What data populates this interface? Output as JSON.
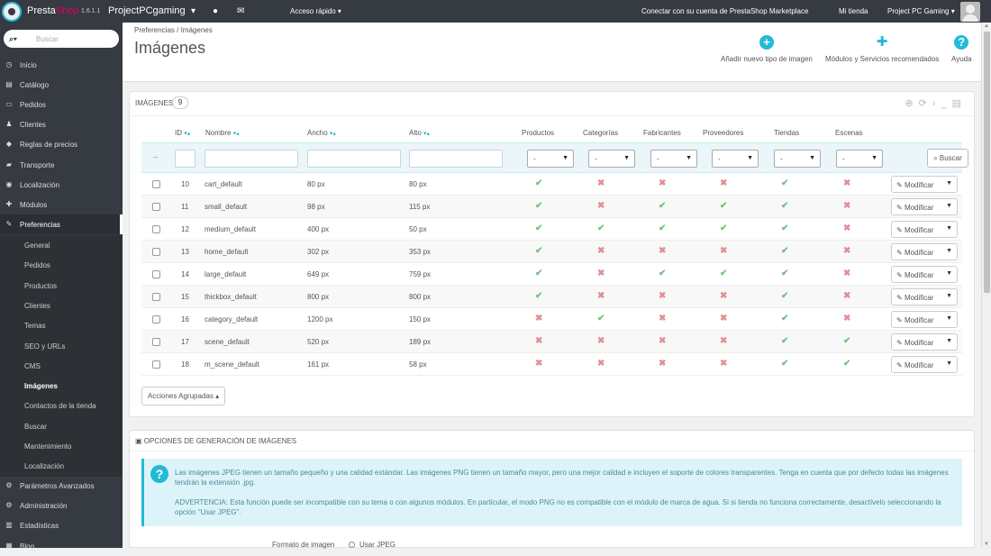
{
  "topbar": {
    "brand_a": "Presta",
    "brand_b": "Shop",
    "version": "1.6.1.1",
    "shop_name": "ProjectPCgaming",
    "quick_access": "Acceso rápido ▾",
    "connect": "Conectar con su cuenta de PrestaShop Marketplace",
    "my_store": "Mi tienda",
    "employee": "Project PC Gaming ▾"
  },
  "sidebar": {
    "search_placeholder": "Buscar",
    "items": [
      {
        "label": "Inicio",
        "icon": "dashboard-icon",
        "glyph": "◷"
      },
      {
        "label": "Catálogo",
        "icon": "book-icon",
        "glyph": "▤"
      },
      {
        "label": "Pedidos",
        "icon": "credit-card-icon",
        "glyph": "▭"
      },
      {
        "label": "Clientes",
        "icon": "users-icon",
        "glyph": "♟"
      },
      {
        "label": "Reglas de precios",
        "icon": "tag-icon",
        "glyph": "◆"
      },
      {
        "label": "Transporte",
        "icon": "truck-icon",
        "glyph": "▰"
      },
      {
        "label": "Localización",
        "icon": "globe-icon",
        "glyph": "◉"
      },
      {
        "label": "Módulos",
        "icon": "puzzle-icon",
        "glyph": "✚"
      },
      {
        "label": "Preferencias",
        "icon": "wrench-icon",
        "glyph": "✎"
      },
      {
        "label": "Parámetros Avanzados",
        "icon": "cogs-icon",
        "glyph": "⚙"
      },
      {
        "label": "Administración",
        "icon": "cog-icon",
        "glyph": "⚙"
      },
      {
        "label": "Estadísticas",
        "icon": "bar-chart-icon",
        "glyph": "▥"
      },
      {
        "label": "Blog",
        "icon": "blog-icon",
        "glyph": "▦"
      }
    ],
    "subitems": [
      "General",
      "Pedidos",
      "Productos",
      "Clientes",
      "Temas",
      "SEO y URLs",
      "CMS",
      "Imágenes",
      "Contactos de la tienda",
      "Buscar",
      "Mantenimiento",
      "Localización"
    ]
  },
  "header": {
    "breadcrumb": "Preferencias  /  Imágenes",
    "title": "Imágenes",
    "tools": {
      "add": "Añadir nuevo tipo de imagen",
      "modules": "Módulos y Servicios recomendados",
      "help": "Ayuda"
    }
  },
  "list": {
    "heading": "Imágenes",
    "count": "9",
    "columns": {
      "id": "ID",
      "name": "Nombre",
      "width": "Ancho",
      "height": "Alto",
      "products": "Productos",
      "categories": "Categorías",
      "manufacturers": "Fabricantes",
      "suppliers": "Proveedores",
      "stores": "Tiendas",
      "scenes": "Escenas"
    },
    "filter_dash": "--",
    "select_value": "-",
    "search_button": "Buscar",
    "edit_label": "Modificar",
    "bulk_label": "Acciones Agrupadas ▴",
    "rows": [
      {
        "id": "10",
        "name": "cart_default",
        "width": "80 px",
        "height": "80 px",
        "flags": [
          true,
          false,
          false,
          false,
          true,
          false
        ]
      },
      {
        "id": "11",
        "name": "small_default",
        "width": "98 px",
        "height": "115 px",
        "flags": [
          true,
          false,
          true,
          true,
          true,
          false
        ]
      },
      {
        "id": "12",
        "name": "medium_default",
        "width": "400 px",
        "height": "50 px",
        "flags": [
          true,
          true,
          true,
          true,
          true,
          false
        ]
      },
      {
        "id": "13",
        "name": "home_default",
        "width": "302 px",
        "height": "353 px",
        "flags": [
          true,
          false,
          false,
          false,
          true,
          false
        ]
      },
      {
        "id": "14",
        "name": "large_default",
        "width": "649 px",
        "height": "759 px",
        "flags": [
          true,
          false,
          true,
          true,
          true,
          false
        ]
      },
      {
        "id": "15",
        "name": "thickbox_default",
        "width": "800 px",
        "height": "800 px",
        "flags": [
          true,
          false,
          false,
          false,
          true,
          false
        ]
      },
      {
        "id": "16",
        "name": "category_default",
        "width": "1200 px",
        "height": "150 px",
        "flags": [
          false,
          true,
          false,
          false,
          true,
          false
        ]
      },
      {
        "id": "17",
        "name": "scene_default",
        "width": "520 px",
        "height": "189 px",
        "flags": [
          false,
          false,
          false,
          false,
          true,
          true
        ]
      },
      {
        "id": "18",
        "name": "m_scene_default",
        "width": "161 px",
        "height": "58 px",
        "flags": [
          false,
          false,
          false,
          false,
          true,
          true
        ]
      }
    ]
  },
  "generation": {
    "heading": "OPCIONES DE GENERACIÓN DE IMÁGENES",
    "info1": "Las imágenes JPEG tienen un tamaño pequeño y una calidad estándar. Las imágenes PNG tienen un tamaño mayor, pero una mejor calidad e incluyen el soporte de colores transparentes. Tenga en cuenta que por defecto todas las imágenes tendrán la extensión .jpg.",
    "info2": "ADVERTENCIA: Esta función puede ser incompatible con su tema o con algunos módulos. En particular, el modo PNG no es compatible con el módulo de marca de agua. Si si tienda no funciona correctamente, desactívelo seleccionando la opción \"Usar JPEG\".",
    "format_label": "Formato de imagen",
    "format_option": "Usar JPEG"
  },
  "colors": {
    "accent": "#25b9d7",
    "sidebar": "#363a41",
    "ok": "#72c279",
    "ko": "#e08f95"
  }
}
